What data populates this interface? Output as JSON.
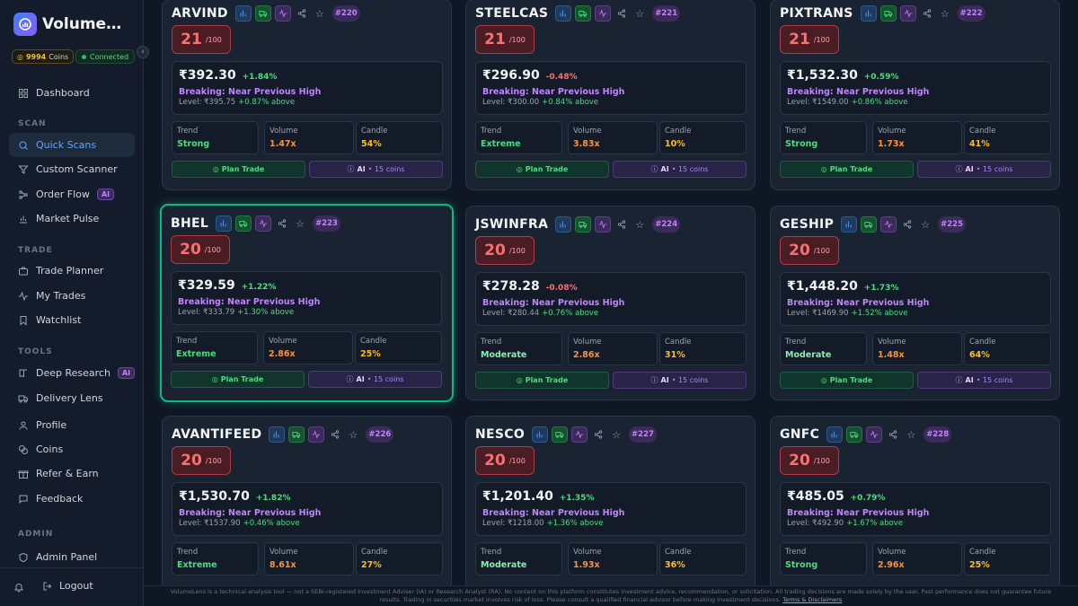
{
  "app": {
    "brand": "VolumeL...",
    "coins_value": "9994",
    "coins_unit": "Coins",
    "status": "Connected"
  },
  "sidebar": {
    "sections": [
      {
        "title": "SCAN"
      },
      {
        "title": "TRADE"
      },
      {
        "title": "TOOLS"
      },
      {
        "title": "ADMIN"
      }
    ],
    "items": [
      {
        "label": "Dashboard",
        "icon": "grid-icon"
      },
      {
        "label": "Quick Scans",
        "icon": "search-icon",
        "active": true
      },
      {
        "label": "Custom Scanner",
        "icon": "filter-icon"
      },
      {
        "label": "Order Flow",
        "icon": "flow-icon",
        "badge": "AI"
      },
      {
        "label": "Market Pulse",
        "icon": "bar-chart-icon"
      },
      {
        "label": "Trade Planner",
        "icon": "briefcase-icon"
      },
      {
        "label": "My Trades",
        "icon": "activity-icon"
      },
      {
        "label": "Watchlist",
        "icon": "bookmark-icon"
      },
      {
        "label": "Deep Research",
        "icon": "book-icon",
        "badge": "AI"
      },
      {
        "label": "Delivery Lens",
        "icon": "truck-icon"
      },
      {
        "label": "Profile",
        "icon": "user-icon"
      },
      {
        "label": "Coins",
        "icon": "coins-icon"
      },
      {
        "label": "Refer & Earn",
        "icon": "gift-icon"
      },
      {
        "label": "Feedback",
        "icon": "message-icon"
      },
      {
        "label": "Admin Panel",
        "icon": "shield-icon"
      }
    ],
    "logout": "Logout"
  },
  "card_labels": {
    "score_max": "/100",
    "trend": "Trend",
    "volume": "Volume",
    "candle": "Candle",
    "plan": "Plan Trade",
    "ai": "AI",
    "ai_cost": "• 15 coins",
    "breakout": "Breaking: Near Previous High",
    "level_prefix": "Level: "
  },
  "cards": [
    {
      "symbol": "ARVIND",
      "rank": "#220",
      "score": "21",
      "price": "₹392.30",
      "change": "+1.84%",
      "level": "₹395.75",
      "above": "+0.87% above",
      "trend": "Strong",
      "volume": "1.47x",
      "candle": "54%"
    },
    {
      "symbol": "STEELCAS",
      "rank": "#221",
      "score": "21",
      "price": "₹296.90",
      "change": "-0.48%",
      "level": "₹300.00",
      "above": "+0.84% above",
      "trend": "Extreme",
      "volume": "3.83x",
      "candle": "10%"
    },
    {
      "symbol": "PIXTRANS",
      "rank": "#222",
      "score": "21",
      "price": "₹1,532.30",
      "change": "+0.59%",
      "level": "₹1549.00",
      "above": "+0.86% above",
      "trend": "Strong",
      "volume": "1.73x",
      "candle": "41%"
    },
    {
      "symbol": "BHEL",
      "rank": "#223",
      "score": "20",
      "price": "₹329.59",
      "change": "+1.22%",
      "level": "₹333.79",
      "above": "+1.30% above",
      "trend": "Extreme",
      "volume": "2.86x",
      "candle": "25%"
    },
    {
      "symbol": "JSWINFRA",
      "rank": "#224",
      "score": "20",
      "price": "₹278.28",
      "change": "-0.08%",
      "level": "₹280.44",
      "above": "+0.76% above",
      "trend": "Moderate",
      "volume": "2.86x",
      "candle": "31%"
    },
    {
      "symbol": "GESHIP",
      "rank": "#225",
      "score": "20",
      "price": "₹1,448.20",
      "change": "+1.73%",
      "level": "₹1469.90",
      "above": "+1.52% above",
      "trend": "Moderate",
      "volume": "1.48x",
      "candle": "64%"
    },
    {
      "symbol": "AVANTIFEED",
      "rank": "#226",
      "score": "20",
      "price": "₹1,530.70",
      "change": "+1.82%",
      "level": "₹1537.90",
      "above": "+0.46% above",
      "trend": "Extreme",
      "volume": "8.61x",
      "candle": "27%"
    },
    {
      "symbol": "NESCO",
      "rank": "#227",
      "score": "20",
      "price": "₹1,201.40",
      "change": "+1.35%",
      "level": "₹1218.00",
      "above": "+1.36% above",
      "trend": "Moderate",
      "volume": "1.93x",
      "candle": "36%"
    },
    {
      "symbol": "GNFC",
      "rank": "#228",
      "score": "20",
      "price": "₹485.05",
      "change": "+0.79%",
      "level": "₹492.90",
      "above": "+1.67% above",
      "trend": "Strong",
      "volume": "2.96x",
      "candle": "25%"
    }
  ],
  "colors": {
    "accent": "#60a5fa",
    "selected_border": "#10b981",
    "score_red": "#f87171",
    "breakout_purple": "#c084fc"
  },
  "footer": {
    "text": "VolumeLens is a technical analysis tool — not a SEBI-registered Investment Adviser (IA) or Research Analyst (RA). No content on this platform constitutes investment advice, recommendation, or solicitation. All trading decisions are made solely by the user. Past performance does not guarantee future results. Trading in securities market involves risk of loss. Please consult a qualified financial advisor before making investment decisions.",
    "link": "Terms & Disclaimers"
  }
}
